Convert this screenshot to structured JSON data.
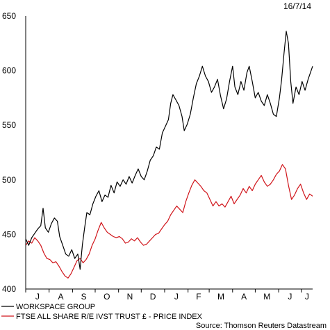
{
  "date_label": "16/7/14",
  "source": "Source: Thomson Reuters Datastream",
  "colors": {
    "workspace": "#000000",
    "ftse": "#d0141a"
  },
  "chart_data": {
    "type": "line",
    "title": "",
    "xlabel": "",
    "ylabel": "",
    "ylim": [
      400,
      650
    ],
    "yticks": [
      400,
      450,
      500,
      550,
      600,
      650
    ],
    "month_labels": [
      "J",
      "A",
      "S",
      "O",
      "N",
      "D",
      "J",
      "F",
      "M",
      "A",
      "M",
      "J",
      "J"
    ],
    "x_range": [
      "2013-07-01",
      "2014-07-16"
    ],
    "grid": false,
    "legend_position": "bottom-left",
    "series": [
      {
        "name": "WORKSPACE GROUP",
        "color": "#000000",
        "points": [
          [
            "2013-07-01",
            446
          ],
          [
            "2013-07-05",
            440
          ],
          [
            "2013-07-09",
            447
          ],
          [
            "2013-07-13",
            451
          ],
          [
            "2013-07-17",
            455
          ],
          [
            "2013-07-21",
            458
          ],
          [
            "2013-07-24",
            474
          ],
          [
            "2013-07-27",
            456
          ],
          [
            "2013-07-31",
            452
          ],
          [
            "2013-08-04",
            460
          ],
          [
            "2013-08-08",
            465
          ],
          [
            "2013-08-12",
            462
          ],
          [
            "2013-08-15",
            448
          ],
          [
            "2013-08-19",
            440
          ],
          [
            "2013-08-23",
            432
          ],
          [
            "2013-08-27",
            430
          ],
          [
            "2013-08-31",
            436
          ],
          [
            "2013-09-04",
            428
          ],
          [
            "2013-09-08",
            432
          ],
          [
            "2013-09-11",
            418
          ],
          [
            "2013-09-14",
            440
          ],
          [
            "2013-09-17",
            456
          ],
          [
            "2013-09-20",
            470
          ],
          [
            "2013-09-24",
            468
          ],
          [
            "2013-09-28",
            478
          ],
          [
            "2013-10-02",
            485
          ],
          [
            "2013-10-06",
            490
          ],
          [
            "2013-10-10",
            480
          ],
          [
            "2013-10-14",
            486
          ],
          [
            "2013-10-18",
            484
          ],
          [
            "2013-10-22",
            495
          ],
          [
            "2013-10-26",
            488
          ],
          [
            "2013-10-30",
            498
          ],
          [
            "2013-11-03",
            494
          ],
          [
            "2013-11-07",
            500
          ],
          [
            "2013-11-11",
            496
          ],
          [
            "2013-11-15",
            503
          ],
          [
            "2013-11-19",
            497
          ],
          [
            "2013-11-23",
            504
          ],
          [
            "2013-11-27",
            510
          ],
          [
            "2013-12-01",
            503
          ],
          [
            "2013-12-05",
            500
          ],
          [
            "2013-12-09",
            508
          ],
          [
            "2013-12-13",
            518
          ],
          [
            "2013-12-17",
            522
          ],
          [
            "2013-12-21",
            530
          ],
          [
            "2013-12-25",
            528
          ],
          [
            "2013-12-29",
            543
          ],
          [
            "2014-01-02",
            549
          ],
          [
            "2014-01-06",
            555
          ],
          [
            "2014-01-09",
            570
          ],
          [
            "2014-01-12",
            578
          ],
          [
            "2014-01-16",
            573
          ],
          [
            "2014-01-20",
            568
          ],
          [
            "2014-01-24",
            558
          ],
          [
            "2014-01-27",
            545
          ],
          [
            "2014-01-31",
            551
          ],
          [
            "2014-02-04",
            560
          ],
          [
            "2014-02-08",
            575
          ],
          [
            "2014-02-12",
            588
          ],
          [
            "2014-02-16",
            595
          ],
          [
            "2014-02-20",
            604
          ],
          [
            "2014-02-24",
            595
          ],
          [
            "2014-02-28",
            590
          ],
          [
            "2014-03-04",
            580
          ],
          [
            "2014-03-08",
            585
          ],
          [
            "2014-03-12",
            592
          ],
          [
            "2014-03-16",
            577
          ],
          [
            "2014-03-20",
            565
          ],
          [
            "2014-03-24",
            574
          ],
          [
            "2014-03-28",
            590
          ],
          [
            "2014-04-01",
            604
          ],
          [
            "2014-04-04",
            585
          ],
          [
            "2014-04-08",
            578
          ],
          [
            "2014-04-12",
            590
          ],
          [
            "2014-04-16",
            582
          ],
          [
            "2014-04-20",
            598
          ],
          [
            "2014-04-23",
            604
          ],
          [
            "2014-04-27",
            590
          ],
          [
            "2014-05-01",
            575
          ],
          [
            "2014-05-05",
            580
          ],
          [
            "2014-05-09",
            572
          ],
          [
            "2014-05-13",
            568
          ],
          [
            "2014-05-17",
            578
          ],
          [
            "2014-05-21",
            570
          ],
          [
            "2014-05-25",
            560
          ],
          [
            "2014-05-29",
            558
          ],
          [
            "2014-06-02",
            575
          ],
          [
            "2014-06-05",
            592
          ],
          [
            "2014-06-08",
            615
          ],
          [
            "2014-06-11",
            636
          ],
          [
            "2014-06-14",
            625
          ],
          [
            "2014-06-17",
            590
          ],
          [
            "2014-06-20",
            570
          ],
          [
            "2014-06-24",
            585
          ],
          [
            "2014-06-28",
            578
          ],
          [
            "2014-07-02",
            590
          ],
          [
            "2014-07-06",
            582
          ],
          [
            "2014-07-10",
            592
          ],
          [
            "2014-07-16",
            604
          ]
        ]
      },
      {
        "name": "FTSE ALL SHARE R/E IVST TRUST £ - PRICE INDEX",
        "color": "#d0141a",
        "points": [
          [
            "2013-07-01",
            440
          ],
          [
            "2013-07-05",
            444
          ],
          [
            "2013-07-09",
            442
          ],
          [
            "2013-07-13",
            447
          ],
          [
            "2013-07-17",
            444
          ],
          [
            "2013-07-21",
            440
          ],
          [
            "2013-07-25",
            433
          ],
          [
            "2013-07-29",
            428
          ],
          [
            "2013-08-02",
            427
          ],
          [
            "2013-08-06",
            424
          ],
          [
            "2013-08-10",
            425
          ],
          [
            "2013-08-14",
            421
          ],
          [
            "2013-08-18",
            416
          ],
          [
            "2013-08-22",
            412
          ],
          [
            "2013-08-26",
            410
          ],
          [
            "2013-08-30",
            414
          ],
          [
            "2013-09-03",
            420
          ],
          [
            "2013-09-07",
            426
          ],
          [
            "2013-09-11",
            428
          ],
          [
            "2013-09-15",
            424
          ],
          [
            "2013-09-19",
            427
          ],
          [
            "2013-09-23",
            432
          ],
          [
            "2013-09-27",
            440
          ],
          [
            "2013-10-01",
            446
          ],
          [
            "2013-10-05",
            454
          ],
          [
            "2013-10-09",
            461
          ],
          [
            "2013-10-13",
            456
          ],
          [
            "2013-10-17",
            452
          ],
          [
            "2013-10-21",
            450
          ],
          [
            "2013-10-25",
            448
          ],
          [
            "2013-10-29",
            447
          ],
          [
            "2013-11-02",
            448
          ],
          [
            "2013-11-06",
            446
          ],
          [
            "2013-11-10",
            442
          ],
          [
            "2013-11-14",
            443
          ],
          [
            "2013-11-18",
            446
          ],
          [
            "2013-11-22",
            444
          ],
          [
            "2013-11-26",
            447
          ],
          [
            "2013-11-30",
            443
          ],
          [
            "2013-12-04",
            440
          ],
          [
            "2013-12-08",
            441
          ],
          [
            "2013-12-12",
            444
          ],
          [
            "2013-12-16",
            447
          ],
          [
            "2013-12-20",
            450
          ],
          [
            "2013-12-24",
            451
          ],
          [
            "2013-12-28",
            455
          ],
          [
            "2014-01-01",
            459
          ],
          [
            "2014-01-05",
            462
          ],
          [
            "2014-01-09",
            468
          ],
          [
            "2014-01-13",
            472
          ],
          [
            "2014-01-17",
            476
          ],
          [
            "2014-01-21",
            473
          ],
          [
            "2014-01-25",
            470
          ],
          [
            "2014-01-29",
            480
          ],
          [
            "2014-02-02",
            488
          ],
          [
            "2014-02-06",
            495
          ],
          [
            "2014-02-10",
            500
          ],
          [
            "2014-02-14",
            497
          ],
          [
            "2014-02-18",
            494
          ],
          [
            "2014-02-22",
            490
          ],
          [
            "2014-02-26",
            488
          ],
          [
            "2014-03-02",
            482
          ],
          [
            "2014-03-06",
            476
          ],
          [
            "2014-03-10",
            480
          ],
          [
            "2014-03-14",
            476
          ],
          [
            "2014-03-18",
            478
          ],
          [
            "2014-03-22",
            475
          ],
          [
            "2014-03-26",
            480
          ],
          [
            "2014-03-30",
            485
          ],
          [
            "2014-04-03",
            478
          ],
          [
            "2014-04-07",
            482
          ],
          [
            "2014-04-11",
            486
          ],
          [
            "2014-04-15",
            492
          ],
          [
            "2014-04-19",
            488
          ],
          [
            "2014-04-23",
            494
          ],
          [
            "2014-04-27",
            490
          ],
          [
            "2014-05-01",
            496
          ],
          [
            "2014-05-05",
            500
          ],
          [
            "2014-05-09",
            504
          ],
          [
            "2014-05-13",
            498
          ],
          [
            "2014-05-17",
            494
          ],
          [
            "2014-05-21",
            496
          ],
          [
            "2014-05-25",
            500
          ],
          [
            "2014-05-29",
            505
          ],
          [
            "2014-06-02",
            508
          ],
          [
            "2014-06-06",
            514
          ],
          [
            "2014-06-10",
            510
          ],
          [
            "2014-06-14",
            495
          ],
          [
            "2014-06-18",
            482
          ],
          [
            "2014-06-22",
            486
          ],
          [
            "2014-06-26",
            492
          ],
          [
            "2014-06-30",
            496
          ],
          [
            "2014-07-04",
            488
          ],
          [
            "2014-07-08",
            482
          ],
          [
            "2014-07-12",
            487
          ],
          [
            "2014-07-16",
            485
          ]
        ]
      }
    ]
  }
}
